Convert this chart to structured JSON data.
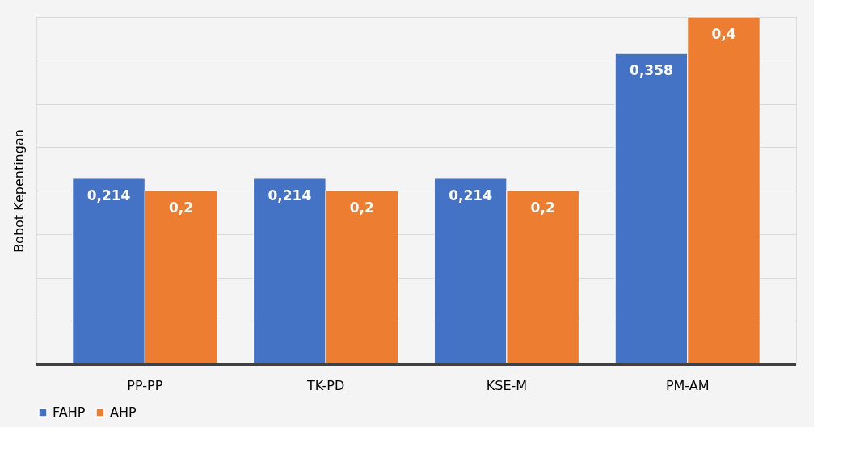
{
  "chart_data": {
    "type": "bar",
    "ylabel": "Bobot Kepentingan",
    "categories": [
      "PP-PP",
      "TK-PD",
      "KSE-M",
      "PM-AM"
    ],
    "series": [
      {
        "name": "FAHP",
        "color": "#4472c4",
        "values": [
          0.214,
          0.214,
          0.214,
          0.358
        ],
        "value_labels": [
          "0,214",
          "0,214",
          "0,214",
          "0,358"
        ]
      },
      {
        "name": "AHP",
        "color": "#ed7d31",
        "values": [
          0.2,
          0.2,
          0.2,
          0.4
        ],
        "value_labels": [
          "0,2",
          "0,2",
          "0,2",
          "0,4"
        ]
      }
    ],
    "tick_labels": "x",
    "grid": "y",
    "legend": "bottom"
  }
}
